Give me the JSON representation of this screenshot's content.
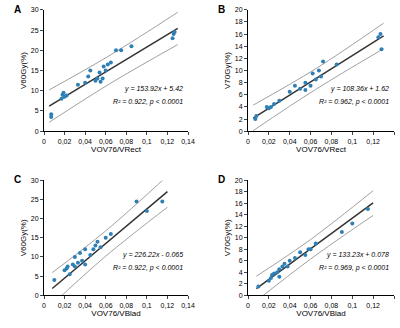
{
  "chart_data": [
    {
      "type": "scatter",
      "panel": "A",
      "x_label": "VOV76/VRect",
      "y_label": "V60Gy(%)",
      "equation": "y = 153.92x + 5.42",
      "stats": "R² = 0.922, p < 0.0001",
      "xlim": [
        0,
        0.14
      ],
      "ylim": [
        0,
        30
      ],
      "xticks": [
        {
          "value": 0,
          "label": "0"
        },
        {
          "value": 0.02,
          "label": "0,02"
        },
        {
          "value": 0.04,
          "label": "0,04"
        },
        {
          "value": 0.06,
          "label": "0,06"
        },
        {
          "value": 0.08,
          "label": "0,08"
        },
        {
          "value": 0.1,
          "label": "0,1"
        },
        {
          "value": 0.12,
          "label": "0,12"
        },
        {
          "value": 0.14,
          "label": "0,14"
        }
      ],
      "yticks": [
        0,
        5,
        10,
        15,
        20,
        25,
        30
      ],
      "points": {
        "color": "#2f7fb5",
        "x": [
          0.007,
          0.007,
          0.017,
          0.018,
          0.019,
          0.02,
          0.022,
          0.033,
          0.04,
          0.043,
          0.045,
          0.05,
          0.052,
          0.054,
          0.055,
          0.057,
          0.058,
          0.06,
          0.062,
          0.065,
          0.07,
          0.075,
          0.085,
          0.125,
          0.126,
          0.127
        ],
        "y": [
          3.5,
          4.2,
          8,
          9,
          9.5,
          8.5,
          8.8,
          11.5,
          12,
          13.5,
          15,
          12.5,
          13,
          14.5,
          12.2,
          13,
          16,
          15,
          16.5,
          17,
          20,
          20,
          21,
          23,
          24,
          24.5
        ]
      },
      "fit_line": {
        "color": "#333333",
        "x": [
          0.005,
          0.13
        ],
        "y": [
          6.19,
          25.43
        ]
      },
      "bands": {
        "color": "#a0a0a0",
        "upper": {
          "x": [
            0.005,
            0.065,
            0.13
          ],
          "y": [
            10.2,
            18.9,
            29.4
          ]
        },
        "lower": {
          "x": [
            0.005,
            0.065,
            0.13
          ],
          "y": [
            2.2,
            11.9,
            21.4
          ]
        }
      }
    },
    {
      "type": "scatter",
      "panel": "B",
      "x_label": "VOV76/VRect",
      "y_label": "V70Gy(%)",
      "equation": "y = 108.36x + 1.62",
      "stats": "R² = 0.962, p < 0.0001",
      "xlim": [
        0,
        0.14
      ],
      "ylim": [
        0,
        20
      ],
      "xticks": [
        {
          "value": 0,
          "label": "0"
        },
        {
          "value": 0.02,
          "label": "0,02"
        },
        {
          "value": 0.04,
          "label": "0,04"
        },
        {
          "value": 0.06,
          "label": "0,06"
        },
        {
          "value": 0.08,
          "label": "0,08"
        },
        {
          "value": 0.1,
          "label": "0,1"
        },
        {
          "value": 0.12,
          "label": "0,12"
        },
        {
          "value": 0.14,
          "label": "0,14"
        }
      ],
      "yticks": [
        0,
        2,
        4,
        6,
        8,
        10,
        12,
        14,
        16,
        18,
        20
      ],
      "points": {
        "color": "#2f7fb5",
        "x": [
          0.007,
          0.008,
          0.018,
          0.02,
          0.022,
          0.025,
          0.03,
          0.04,
          0.045,
          0.05,
          0.055,
          0.055,
          0.06,
          0.062,
          0.065,
          0.068,
          0.07,
          0.072,
          0.085,
          0.125,
          0.127,
          0.128
        ],
        "y": [
          2,
          2.5,
          4,
          3.8,
          4,
          4.5,
          5,
          6.5,
          7.5,
          7,
          8,
          6.8,
          7.5,
          9.5,
          8.5,
          10,
          9,
          11.5,
          11,
          15.5,
          16,
          13.5
        ]
      },
      "fit_line": {
        "color": "#333333",
        "x": [
          0.005,
          0.13
        ],
        "y": [
          2.16,
          15.71
        ]
      },
      "bands": {
        "color": "#a0a0a0",
        "upper": {
          "x": [
            0.005,
            0.065,
            0.13
          ],
          "y": [
            4.3,
            10.3,
            17.8
          ]
        },
        "lower": {
          "x": [
            0.005,
            0.065,
            0.13
          ],
          "y": [
            0.1,
            6.9,
            13.6
          ]
        }
      }
    },
    {
      "type": "scatter",
      "panel": "C",
      "x_label": "VOV76/VBlad",
      "y_label": "V60Gy(%)",
      "equation": "y = 226.22x - 0.065",
      "stats": "R² = 0.922, p < 0.0001",
      "xlim": [
        0,
        0.14
      ],
      "ylim": [
        0,
        30
      ],
      "xticks": [
        {
          "value": 0,
          "label": "0"
        },
        {
          "value": 0.02,
          "label": "0,02"
        },
        {
          "value": 0.04,
          "label": "0,04"
        },
        {
          "value": 0.06,
          "label": "0,06"
        },
        {
          "value": 0.08,
          "label": "0,08"
        },
        {
          "value": 0.1,
          "label": "0,1"
        },
        {
          "value": 0.12,
          "label": "0,12"
        },
        {
          "value": 0.14,
          "label": "0,14"
        }
      ],
      "yticks": [
        0,
        5,
        10,
        15,
        20,
        25,
        30
      ],
      "points": {
        "color": "#2f7fb5",
        "x": [
          0.01,
          0.02,
          0.022,
          0.023,
          0.025,
          0.028,
          0.03,
          0.03,
          0.033,
          0.035,
          0.037,
          0.04,
          0.04,
          0.045,
          0.048,
          0.05,
          0.052,
          0.055,
          0.06,
          0.065,
          0.09,
          0.1,
          0.115
        ],
        "y": [
          4,
          6.5,
          7,
          7.5,
          5.5,
          8,
          7.5,
          10,
          8.5,
          11,
          9,
          8,
          12,
          10.5,
          12,
          13,
          14,
          12.5,
          15,
          16,
          24.5,
          22,
          24.5
        ]
      },
      "fit_line": {
        "color": "#333333",
        "x": [
          0.008,
          0.12
        ],
        "y": [
          1.75,
          27.08
        ]
      },
      "bands": {
        "color": "#a0a0a0",
        "upper": {
          "x": [
            0.008,
            0.06,
            0.12
          ],
          "y": [
            5.9,
            16.8,
            31.2
          ]
        },
        "lower": {
          "x": [
            0.008,
            0.06,
            0.12
          ],
          "y": [
            -2.4,
            10.2,
            23
          ]
        }
      }
    },
    {
      "type": "scatter",
      "panel": "D",
      "x_label": "VOV76/VBlad",
      "y_label": "V70Gy(%)",
      "equation": "y = 133.23x + 0.078",
      "stats": "R² = 0.969, p < 0.0001",
      "xlim": [
        0,
        0.14
      ],
      "ylim": [
        0,
        20
      ],
      "xticks": [
        {
          "value": 0,
          "label": "0"
        },
        {
          "value": 0.02,
          "label": "0,02"
        },
        {
          "value": 0.04,
          "label": "0,04"
        },
        {
          "value": 0.06,
          "label": "0,06"
        },
        {
          "value": 0.08,
          "label": "0,08"
        },
        {
          "value": 0.1,
          "label": "0,1"
        },
        {
          "value": 0.12,
          "label": "0,12"
        },
        {
          "value": 0.14,
          "label": "0,14"
        }
      ],
      "yticks": [
        0,
        2,
        4,
        6,
        8,
        10,
        12,
        14,
        16,
        18,
        20
      ],
      "points": {
        "color": "#2f7fb5",
        "x": [
          0.01,
          0.02,
          0.022,
          0.023,
          0.025,
          0.028,
          0.03,
          0.03,
          0.033,
          0.035,
          0.038,
          0.04,
          0.045,
          0.05,
          0.055,
          0.058,
          0.06,
          0.065,
          0.09,
          0.1,
          0.115
        ],
        "y": [
          1.5,
          2.5,
          3,
          3.5,
          3.8,
          4,
          4.5,
          3.2,
          5,
          5.5,
          5,
          6,
          6.5,
          7.5,
          7,
          8,
          8,
          9,
          11,
          12.5,
          15
        ]
      },
      "fit_line": {
        "color": "#333333",
        "x": [
          0.008,
          0.12
        ],
        "y": [
          1.14,
          16.07
        ]
      },
      "bands": {
        "color": "#a0a0a0",
        "upper": {
          "x": [
            0.008,
            0.06,
            0.12
          ],
          "y": [
            3.3,
            9.7,
            18.2
          ]
        },
        "lower": {
          "x": [
            0.008,
            0.06,
            0.12
          ],
          "y": [
            -1,
            6.3,
            13.9
          ]
        }
      }
    }
  ]
}
